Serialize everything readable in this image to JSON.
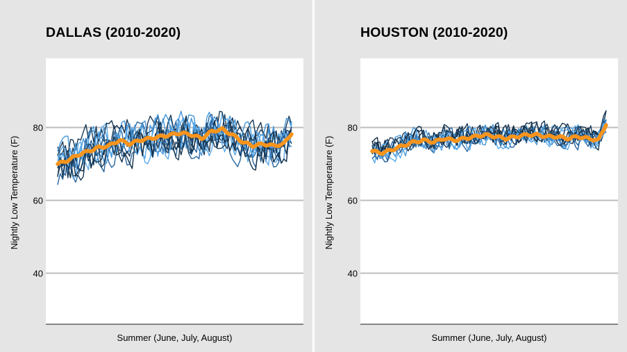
{
  "chart_data": [
    {
      "type": "line",
      "title": "DALLAS (2010-2020)",
      "xlabel": "Summer (June, July, August)",
      "ylabel": "Nightly Low Temperature (F)",
      "ylim": [
        26,
        99
      ],
      "yticks": [
        40,
        60,
        80
      ],
      "grid": "horizontal",
      "annual_line_colors": [
        "#1b3a57",
        "#2a66a0",
        "#4596d8",
        "#5aa9ea",
        "#123049"
      ],
      "average_line_color": "#f7941d",
      "num_days": 92,
      "average_series": {
        "name": "",
        "anchors_day": [
          0,
          4,
          8,
          12,
          16,
          20,
          24,
          28,
          32,
          36,
          40,
          44,
          48,
          52,
          56,
          60,
          64,
          68,
          72,
          76,
          80,
          84,
          88,
          91
        ],
        "anchors_value": [
          70,
          71,
          72.5,
          73.5,
          74.5,
          75,
          76.5,
          75.5,
          76.5,
          77,
          77.5,
          78,
          78.5,
          78,
          77,
          79,
          79.5,
          78,
          76,
          75,
          75.5,
          75,
          75.5,
          78.5
        ]
      },
      "annual_series_spread": 3.6
    },
    {
      "type": "line",
      "title": "HOUSTON (2010-2020)",
      "xlabel": "Summer (June, July, August)",
      "ylabel": "Nightly Low Temperature (F)",
      "ylim": [
        26,
        99
      ],
      "yticks": [
        40,
        60,
        80
      ],
      "grid": "horizontal",
      "annual_line_colors": [
        "#1b3a57",
        "#2a66a0",
        "#4596d8",
        "#5aa9ea",
        "#123049"
      ],
      "average_line_color": "#f7941d",
      "num_days": 92,
      "average_series": {
        "name": "",
        "anchors_day": [
          0,
          4,
          8,
          12,
          16,
          20,
          24,
          28,
          32,
          36,
          40,
          44,
          48,
          52,
          56,
          60,
          64,
          68,
          72,
          76,
          80,
          84,
          88,
          91
        ],
        "anchors_value": [
          73.5,
          73,
          74,
          75,
          76,
          76.5,
          76,
          77,
          76.5,
          77,
          77.5,
          78,
          77.5,
          77,
          77.5,
          78,
          78,
          77.5,
          77.5,
          77,
          77.5,
          77,
          76.5,
          81
        ]
      },
      "annual_series_spread": 2.2
    }
  ]
}
